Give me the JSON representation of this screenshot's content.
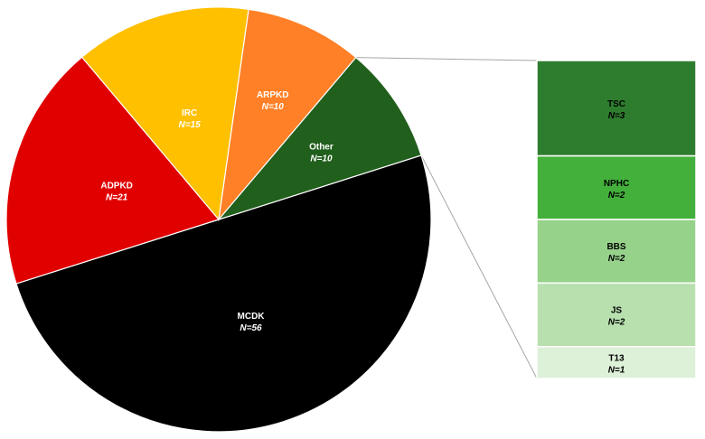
{
  "chart_data": [
    {
      "type": "pie",
      "categories": [
        "MCDK",
        "ADPKD",
        "IRC",
        "ARPKD",
        "Other"
      ],
      "values": [
        56,
        21,
        15,
        10,
        10
      ],
      "value_labels": [
        "N=56",
        "N=21",
        "N=15",
        "N=10",
        "N=10"
      ],
      "colors": [
        "#000000",
        "#e00000",
        "#ffc000",
        "#ff8026",
        "#215f1c"
      ],
      "label_colors": [
        "#ffffff",
        "#ffffff",
        "#ffffff",
        "#ffffff",
        "#ffffff"
      ],
      "exploded_into": "Other"
    },
    {
      "type": "bar",
      "stacked": true,
      "orientation": "vertical",
      "detail_of": "Other",
      "categories": [
        "TSC",
        "NPHC",
        "BBS",
        "JS",
        "T13"
      ],
      "values": [
        3,
        2,
        2,
        2,
        1
      ],
      "value_labels": [
        "N=3",
        "N=2",
        "N=2",
        "N=2",
        "N=1"
      ],
      "colors": [
        "#2e7d2e",
        "#44b03c",
        "#96d28a",
        "#b8e0af",
        "#ddf0d8"
      ],
      "label_colors": [
        "#000000",
        "#000000",
        "#000000",
        "#000000",
        "#000000"
      ]
    }
  ]
}
